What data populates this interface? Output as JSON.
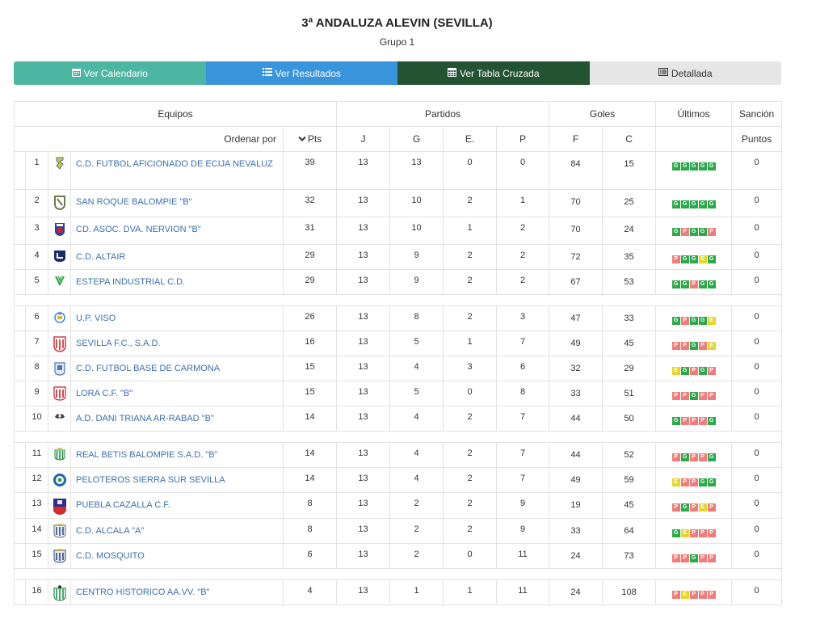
{
  "header": {
    "title": "3ª ANDALUZA ALEVIN (SEVILLA)",
    "subtitle": "Grupo 1"
  },
  "buttons": {
    "calendar": "Ver Calendario",
    "results": "Ver Resultados",
    "cross": "Ver Tabla Cruzada",
    "detailed": "Detallada"
  },
  "icons": {
    "calendar": "calendar-icon",
    "results": "list-icon",
    "cross": "table-icon",
    "detailed": "list-alt-icon"
  },
  "colors": {
    "calendar_btn": "#4db6a3",
    "results_btn": "#3a94dc",
    "cross_btn": "#245333",
    "detailed_btn": "#e6e6e6",
    "team_link": "#3b6fb1",
    "win": "#2ba84a",
    "loss": "#f07b7b",
    "draw": "#e6d62c"
  },
  "table": {
    "group_headers": {
      "teams": "Equipos",
      "matches": "Partidos",
      "goals": "Goles",
      "last": "Últimos",
      "sanction": "Sanción"
    },
    "sort_label": "Ordenar por",
    "sort_column": "Pts",
    "columns": {
      "j": "J",
      "g": "G",
      "e": "E.",
      "p": "P",
      "f": "F",
      "c": "C",
      "points": "Puntos"
    },
    "rows": [
      {
        "pos": "1",
        "team": "C.D. FUTBOL AFICIONADO DE ECIJA NEVALUZ",
        "pts": "39",
        "j": "13",
        "g": "13",
        "e": "0",
        "p": "0",
        "f": "84",
        "c": "15",
        "form": [
          "G",
          "G",
          "G",
          "G",
          "G"
        ],
        "sanction": "0",
        "crest": "shield-ecija"
      },
      {
        "pos": "2",
        "team": "SAN ROQUE BALOMPIE \"B\"",
        "pts": "32",
        "j": "13",
        "g": "10",
        "e": "2",
        "p": "1",
        "f": "70",
        "c": "25",
        "form": [
          "G",
          "G",
          "G",
          "G",
          "G"
        ],
        "sanction": "0",
        "crest": "shield-sanroque"
      },
      {
        "pos": "3",
        "team": "CD. ASOC. DVA. NERVION \"B\"",
        "pts": "31",
        "j": "13",
        "g": "10",
        "e": "1",
        "p": "2",
        "f": "70",
        "c": "24",
        "form": [
          "G",
          "P",
          "G",
          "G",
          "P"
        ],
        "sanction": "0",
        "crest": "shield-nervion"
      },
      {
        "pos": "4",
        "team": "C.D. ALTAIR",
        "pts": "29",
        "j": "13",
        "g": "9",
        "e": "2",
        "p": "2",
        "f": "72",
        "c": "35",
        "form": [
          "P",
          "G",
          "G",
          "E",
          "G"
        ],
        "sanction": "0",
        "crest": "shield-altair"
      },
      {
        "pos": "5",
        "team": "ESTEPA INDUSTRIAL C.D.",
        "pts": "29",
        "j": "13",
        "g": "9",
        "e": "2",
        "p": "2",
        "f": "67",
        "c": "53",
        "form": [
          "G",
          "G",
          "P",
          "G",
          "G"
        ],
        "sanction": "0",
        "crest": "shield-estepa"
      },
      {
        "pos": "6",
        "team": "U.P. VISO",
        "pts": "26",
        "j": "13",
        "g": "8",
        "e": "2",
        "p": "3",
        "f": "47",
        "c": "33",
        "form": [
          "G",
          "P",
          "G",
          "G",
          "E"
        ],
        "sanction": "0",
        "crest": "shield-viso"
      },
      {
        "pos": "7",
        "team": "SEVILLA F.C., S.A.D.",
        "pts": "16",
        "j": "13",
        "g": "5",
        "e": "1",
        "p": "7",
        "f": "49",
        "c": "45",
        "form": [
          "P",
          "P",
          "G",
          "P",
          "E"
        ],
        "sanction": "0",
        "crest": "shield-sevilla"
      },
      {
        "pos": "8",
        "team": "C.D. FUTBOL BASE DE CARMONA",
        "pts": "15",
        "j": "13",
        "g": "4",
        "e": "3",
        "p": "6",
        "f": "32",
        "c": "29",
        "form": [
          "E",
          "G",
          "P",
          "G",
          "P"
        ],
        "sanction": "0",
        "crest": "shield-carmona"
      },
      {
        "pos": "9",
        "team": "LORA C.F. \"B\"",
        "pts": "15",
        "j": "13",
        "g": "5",
        "e": "0",
        "p": "8",
        "f": "33",
        "c": "51",
        "form": [
          "P",
          "P",
          "G",
          "P",
          "P"
        ],
        "sanction": "0",
        "crest": "shield-lora"
      },
      {
        "pos": "10",
        "team": "A.D. DANI TRIANA AR-RABAD \"B\"",
        "pts": "14",
        "j": "13",
        "g": "4",
        "e": "2",
        "p": "7",
        "f": "44",
        "c": "50",
        "form": [
          "G",
          "P",
          "P",
          "P",
          "G"
        ],
        "sanction": "0",
        "crest": "shield-triana"
      },
      {
        "pos": "11",
        "team": "REAL BETIS BALOMPIE S.A.D. \"B\"",
        "pts": "14",
        "j": "13",
        "g": "4",
        "e": "2",
        "p": "7",
        "f": "44",
        "c": "52",
        "form": [
          "P",
          "G",
          "P",
          "P",
          "G"
        ],
        "sanction": "0",
        "crest": "shield-betis"
      },
      {
        "pos": "12",
        "team": "PELOTEROS SIERRA SUR SEVILLA",
        "pts": "14",
        "j": "13",
        "g": "4",
        "e": "2",
        "p": "7",
        "f": "49",
        "c": "59",
        "form": [
          "E",
          "P",
          "P",
          "G",
          "G"
        ],
        "sanction": "0",
        "crest": "shield-peloteros"
      },
      {
        "pos": "13",
        "team": "PUEBLA CAZALLA C.F.",
        "pts": "8",
        "j": "13",
        "g": "2",
        "e": "2",
        "p": "9",
        "f": "19",
        "c": "45",
        "form": [
          "P",
          "G",
          "P",
          "E",
          "P"
        ],
        "sanction": "0",
        "crest": "shield-puebla"
      },
      {
        "pos": "14",
        "team": "C.D. ALCALA \"A\"",
        "pts": "8",
        "j": "13",
        "g": "2",
        "e": "2",
        "p": "9",
        "f": "33",
        "c": "64",
        "form": [
          "G",
          "E",
          "P",
          "P",
          "P"
        ],
        "sanction": "0",
        "crest": "shield-alcala"
      },
      {
        "pos": "15",
        "team": "C.D. MOSQUITO",
        "pts": "6",
        "j": "13",
        "g": "2",
        "e": "0",
        "p": "11",
        "f": "24",
        "c": "73",
        "form": [
          "P",
          "P",
          "G",
          "P",
          "P"
        ],
        "sanction": "0",
        "crest": "shield-mosquito"
      },
      {
        "pos": "16",
        "team": "CENTRO HISTORICO AA.VV. \"B\"",
        "pts": "4",
        "j": "13",
        "g": "1",
        "e": "1",
        "p": "11",
        "f": "24",
        "c": "108",
        "form": [
          "P",
          "E",
          "P",
          "P",
          "P"
        ],
        "sanction": "0",
        "crest": "shield-centro"
      }
    ]
  }
}
